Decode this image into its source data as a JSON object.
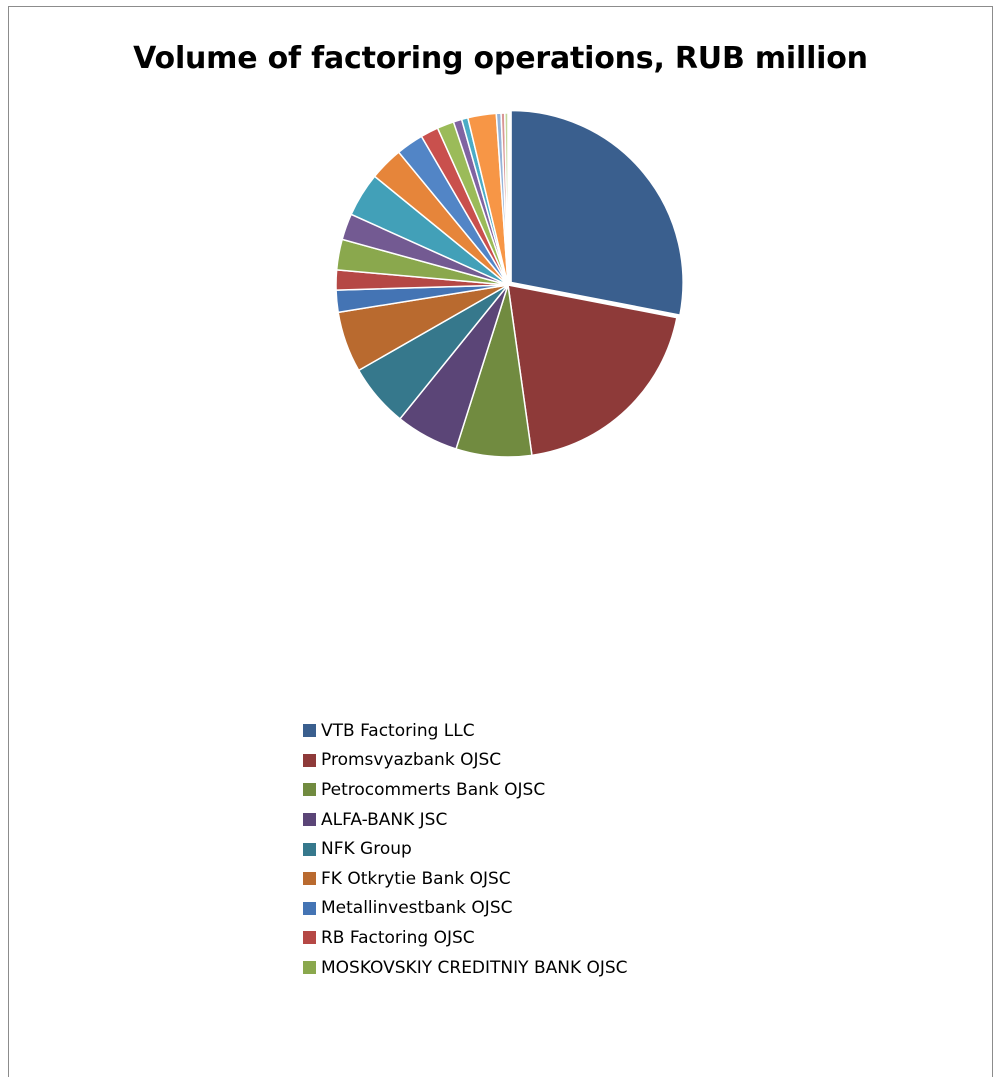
{
  "chart_data": {
    "type": "pie",
    "title": "Volume of factoring operations, RUB million",
    "series": [
      {
        "name": "VTB Factoring LLC",
        "value": 28.4,
        "color": "#3a5f8e"
      },
      {
        "name": "Promsvyazbank OJSC",
        "value": 20.0,
        "color": "#8e3a39"
      },
      {
        "name": "Petrocommerts Bank OJSC",
        "value": 7.2,
        "color": "#718b40"
      },
      {
        "name": "ALFA-BANK JSC",
        "value": 6.0,
        "color": "#5b4577"
      },
      {
        "name": "NFK Group",
        "value": 6.0,
        "color": "#36788c"
      },
      {
        "name": "FK Otkrytie Bank OJSC",
        "value": 5.8,
        "color": "#b96a2f"
      },
      {
        "name": "Metallinvestbank OJSC",
        "value": 2.1,
        "color": "#4474b4"
      },
      {
        "name": "RB Factoring OJSC",
        "value": 1.9,
        "color": "#b54845"
      },
      {
        "name": "MOSKOVSKIY CREDITNIY BANK OJSC",
        "value": 2.9,
        "color": "#8aa84d"
      },
      {
        "name": "",
        "value": 2.5,
        "color": "#735a92"
      },
      {
        "name": "",
        "value": 4.2,
        "color": "#42a0b8"
      },
      {
        "name": "",
        "value": 3.2,
        "color": "#e6853a"
      },
      {
        "name": "",
        "value": 2.6,
        "color": "#5285c6"
      },
      {
        "name": "",
        "value": 1.7,
        "color": "#c9504d"
      },
      {
        "name": "",
        "value": 1.6,
        "color": "#9bbb59"
      },
      {
        "name": "",
        "value": 0.8,
        "color": "#8064a2"
      },
      {
        "name": "",
        "value": 0.6,
        "color": "#4bacc6"
      },
      {
        "name": "",
        "value": 2.7,
        "color": "#f79646"
      },
      {
        "name": "",
        "value": 0.45,
        "color": "#95b3d7"
      },
      {
        "name": "",
        "value": 0.35,
        "color": "#d99694"
      },
      {
        "name": "",
        "value": 0.3,
        "color": "#c3d69b"
      }
    ],
    "legend_position": "bottom",
    "legend_visible_count": 9,
    "exploded_first_slice": true
  }
}
